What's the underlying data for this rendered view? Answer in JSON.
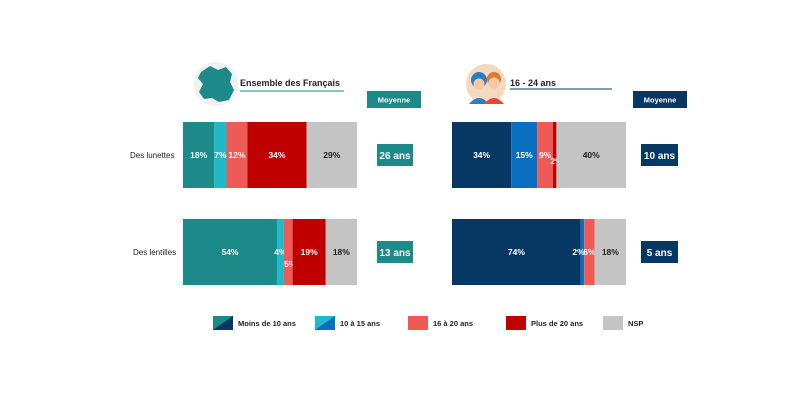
{
  "chart_data": {
    "type": "bar",
    "stacked": true,
    "orientation": "horizontal",
    "categories": [
      "Des lunettes",
      "Des lentilles"
    ],
    "legend": [
      "Moins de 10 ans",
      "10 à 15 ans",
      "16 à 20 ans",
      "Plus de 20 ans",
      "NSP"
    ],
    "legend_position": "bottom",
    "panels": [
      {
        "title": "Ensemble des Français",
        "average_header": "Moyenne",
        "rows": [
          {
            "category": "Des lunettes",
            "values": [
              18,
              7,
              12,
              34,
              29
            ],
            "labels": [
              "18%",
              "7%",
              "12%",
              "34%",
              "29%"
            ],
            "average": "26 ans"
          },
          {
            "category": "Des lentilles",
            "values": [
              54,
              4,
              5,
              19,
              18
            ],
            "labels": [
              "54%",
              "4%",
              "5%",
              "19%",
              "18%"
            ],
            "average": "13 ans"
          }
        ]
      },
      {
        "title": "16 - 24 ans",
        "average_header": "Moyenne",
        "rows": [
          {
            "category": "Des lunettes",
            "values": [
              34,
              15,
              9,
              2,
              40
            ],
            "labels": [
              "34%",
              "15%",
              "9%",
              "2%",
              "40%"
            ],
            "average": "10 ans"
          },
          {
            "category": "Des lentilles",
            "values": [
              74,
              2,
              6,
              0,
              18
            ],
            "labels": [
              "74%",
              "2%",
              "6%",
              "",
              "18%"
            ],
            "average": "5 ans"
          }
        ]
      }
    ]
  },
  "colors": {
    "panel1": [
      "#1b8a89",
      "#21b8c8",
      "#ee5a56",
      "#c00000",
      "#c4c4c4"
    ],
    "panel2": [
      "#073763",
      "#0b6fc0",
      "#ee5a56",
      "#c00000",
      "#c4c4c4"
    ],
    "panel1_accent": "#1b8a89",
    "panel2_accent": "#073763",
    "legend": [
      "#1b8a89",
      "#21b8c8",
      "#ee5a56",
      "#c00000",
      "#c4c4c4"
    ],
    "legend_tint": [
      "#073763",
      "#0b6fc0",
      "#ee5a56",
      "#c00000",
      "#c4c4c4"
    ]
  },
  "icons": {
    "panel1": "france-map-icon",
    "panel2": "young-people-icon"
  }
}
